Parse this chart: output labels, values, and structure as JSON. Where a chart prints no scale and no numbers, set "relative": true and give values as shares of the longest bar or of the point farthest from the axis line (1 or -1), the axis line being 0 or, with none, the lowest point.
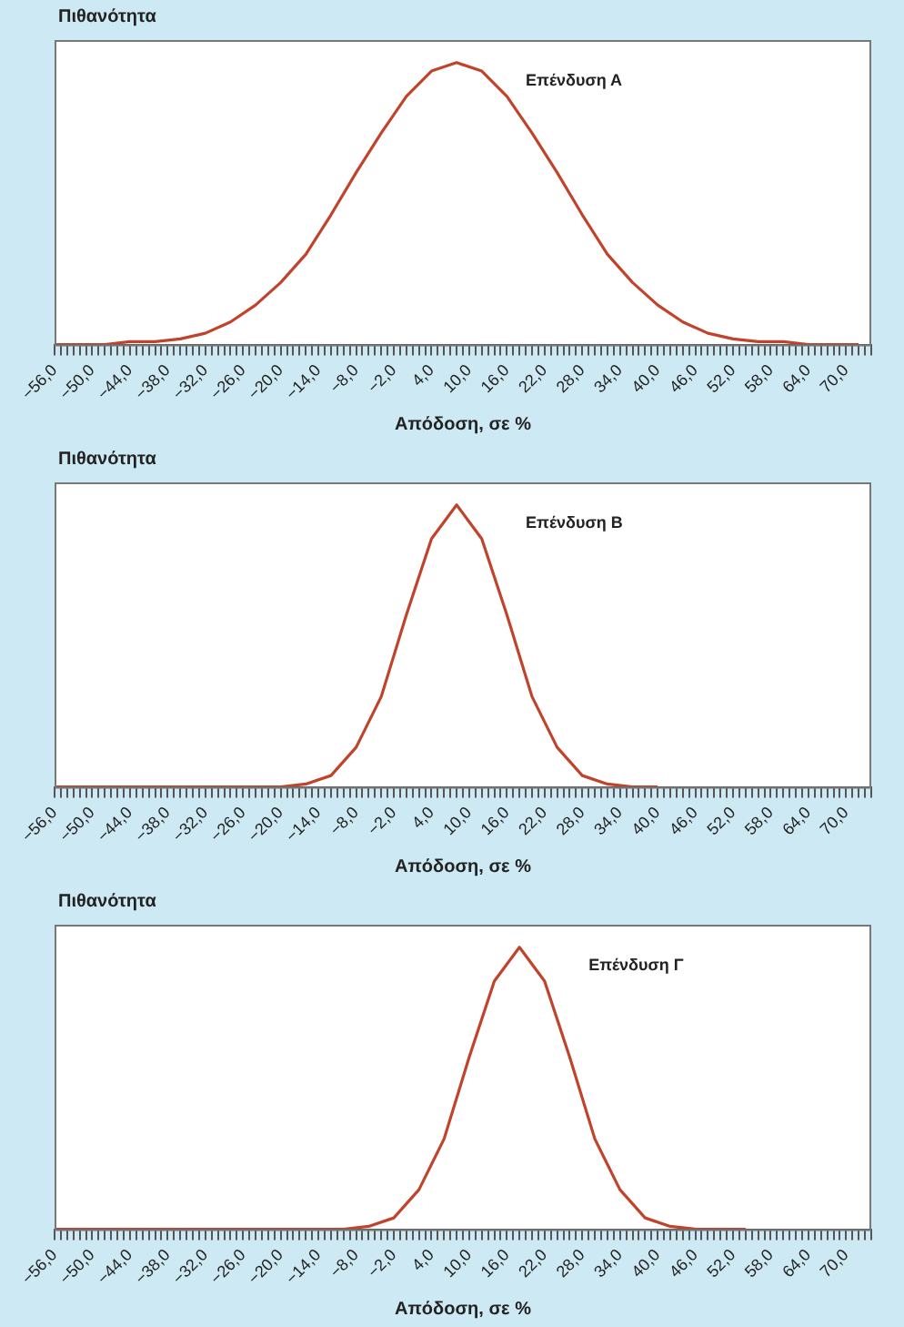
{
  "chart_data": [
    {
      "type": "line",
      "ylabel": "Πιθανότητα",
      "xlabel": "Απόδοση, σε %",
      "relative": true,
      "grid": false,
      "legend": false,
      "marker": "none",
      "line_style": "solid",
      "tick_labels": "x",
      "xlim": [
        -56,
        74
      ],
      "x": [
        -56,
        -52,
        -48,
        -44,
        -40,
        -36,
        -32,
        -28,
        -24,
        -20,
        -16,
        -12,
        -8,
        -4,
        0,
        4,
        8,
        12,
        16,
        20,
        24,
        28,
        32,
        36,
        40,
        44,
        48,
        52,
        56,
        60,
        64,
        68,
        72
      ],
      "series": [
        {
          "name": "Επένδυση Α",
          "color": "#c0442c",
          "values": [
            0,
            0,
            0,
            0.01,
            0.01,
            0.02,
            0.04,
            0.08,
            0.14,
            0.22,
            0.32,
            0.46,
            0.61,
            0.75,
            0.88,
            0.97,
            1,
            0.97,
            0.88,
            0.75,
            0.61,
            0.46,
            0.32,
            0.22,
            0.14,
            0.08,
            0.04,
            0.02,
            0.01,
            0.01,
            0,
            0,
            0
          ]
        }
      ],
      "xticks": [
        {
          "value": -56,
          "label": "−56,0"
        },
        {
          "value": -55,
          "label": null
        },
        {
          "value": -54,
          "label": null
        },
        {
          "value": -53,
          "label": null
        },
        {
          "value": -52,
          "label": null
        },
        {
          "value": -51,
          "label": null
        },
        {
          "value": -50,
          "label": "−50,0"
        },
        {
          "value": -49,
          "label": null
        },
        {
          "value": -48,
          "label": null
        },
        {
          "value": -47,
          "label": null
        },
        {
          "value": -46,
          "label": null
        },
        {
          "value": -45,
          "label": null
        },
        {
          "value": -44,
          "label": "−44,0"
        },
        {
          "value": -43,
          "label": null
        },
        {
          "value": -42,
          "label": null
        },
        {
          "value": -41,
          "label": null
        },
        {
          "value": -40,
          "label": null
        },
        {
          "value": -39,
          "label": null
        },
        {
          "value": -38,
          "label": "−38,0"
        },
        {
          "value": -37,
          "label": null
        },
        {
          "value": -36,
          "label": null
        },
        {
          "value": -35,
          "label": null
        },
        {
          "value": -34,
          "label": null
        },
        {
          "value": -33,
          "label": null
        },
        {
          "value": -32,
          "label": "−32,0"
        },
        {
          "value": -31,
          "label": null
        },
        {
          "value": -30,
          "label": null
        },
        {
          "value": -29,
          "label": null
        },
        {
          "value": -28,
          "label": null
        },
        {
          "value": -27,
          "label": null
        },
        {
          "value": -26,
          "label": "−26,0"
        },
        {
          "value": -25,
          "label": null
        },
        {
          "value": -24,
          "label": null
        },
        {
          "value": -23,
          "label": null
        },
        {
          "value": -22,
          "label": null
        },
        {
          "value": -21,
          "label": null
        },
        {
          "value": -20,
          "label": "−20,0"
        },
        {
          "value": -19,
          "label": null
        },
        {
          "value": -18,
          "label": null
        },
        {
          "value": -17,
          "label": null
        },
        {
          "value": -16,
          "label": null
        },
        {
          "value": -15,
          "label": null
        },
        {
          "value": -14,
          "label": "−14,0"
        },
        {
          "value": -13,
          "label": null
        },
        {
          "value": -12,
          "label": null
        },
        {
          "value": -11,
          "label": null
        },
        {
          "value": -10,
          "label": null
        },
        {
          "value": -9,
          "label": null
        },
        {
          "value": -8,
          "label": "−8,0"
        },
        {
          "value": -7,
          "label": null
        },
        {
          "value": -6,
          "label": null
        },
        {
          "value": -5,
          "label": null
        },
        {
          "value": -4,
          "label": null
        },
        {
          "value": -3,
          "label": null
        },
        {
          "value": -2,
          "label": "−2,0"
        },
        {
          "value": -1,
          "label": null
        },
        {
          "value": 0,
          "label": null
        },
        {
          "value": 1,
          "label": null
        },
        {
          "value": 2,
          "label": null
        },
        {
          "value": 3,
          "label": null
        },
        {
          "value": 4,
          "label": "4,0"
        },
        {
          "value": 5,
          "label": null
        },
        {
          "value": 6,
          "label": null
        },
        {
          "value": 7,
          "label": null
        },
        {
          "value": 8,
          "label": null
        },
        {
          "value": 9,
          "label": null
        },
        {
          "value": 10,
          "label": "10,0"
        },
        {
          "value": 11,
          "label": null
        },
        {
          "value": 12,
          "label": null
        },
        {
          "value": 13,
          "label": null
        },
        {
          "value": 14,
          "label": null
        },
        {
          "value": 15,
          "label": null
        },
        {
          "value": 16,
          "label": "16,0"
        },
        {
          "value": 17,
          "label": null
        },
        {
          "value": 18,
          "label": null
        },
        {
          "value": 19,
          "label": null
        },
        {
          "value": 20,
          "label": null
        },
        {
          "value": 21,
          "label": null
        },
        {
          "value": 22,
          "label": "22,0"
        },
        {
          "value": 23,
          "label": null
        },
        {
          "value": 24,
          "label": null
        },
        {
          "value": 25,
          "label": null
        },
        {
          "value": 26,
          "label": null
        },
        {
          "value": 27,
          "label": null
        },
        {
          "value": 28,
          "label": "28,0"
        },
        {
          "value": 29,
          "label": null
        },
        {
          "value": 30,
          "label": null
        },
        {
          "value": 31,
          "label": null
        },
        {
          "value": 32,
          "label": null
        },
        {
          "value": 33,
          "label": null
        },
        {
          "value": 34,
          "label": "34,0"
        },
        {
          "value": 35,
          "label": null
        },
        {
          "value": 36,
          "label": null
        },
        {
          "value": 37,
          "label": null
        },
        {
          "value": 38,
          "label": null
        },
        {
          "value": 39,
          "label": null
        },
        {
          "value": 40,
          "label": "40,0"
        },
        {
          "value": 41,
          "label": null
        },
        {
          "value": 42,
          "label": null
        },
        {
          "value": 43,
          "label": null
        },
        {
          "value": 44,
          "label": null
        },
        {
          "value": 45,
          "label": null
        },
        {
          "value": 46,
          "label": "46,0"
        },
        {
          "value": 47,
          "label": null
        },
        {
          "value": 48,
          "label": null
        },
        {
          "value": 49,
          "label": null
        },
        {
          "value": 50,
          "label": null
        },
        {
          "value": 51,
          "label": null
        },
        {
          "value": 52,
          "label": "52,0"
        },
        {
          "value": 53,
          "label": null
        },
        {
          "value": 54,
          "label": null
        },
        {
          "value": 55,
          "label": null
        },
        {
          "value": 56,
          "label": null
        },
        {
          "value": 57,
          "label": null
        },
        {
          "value": 58,
          "label": "58,0"
        },
        {
          "value": 59,
          "label": null
        },
        {
          "value": 60,
          "label": null
        },
        {
          "value": 61,
          "label": null
        },
        {
          "value": 62,
          "label": null
        },
        {
          "value": 63,
          "label": null
        },
        {
          "value": 64,
          "label": "64,0"
        },
        {
          "value": 65,
          "label": null
        },
        {
          "value": 66,
          "label": null
        },
        {
          "value": 67,
          "label": null
        },
        {
          "value": 68,
          "label": null
        },
        {
          "value": 69,
          "label": null
        },
        {
          "value": 70,
          "label": "70,0"
        },
        {
          "value": 71,
          "label": null
        },
        {
          "value": 72,
          "label": null
        },
        {
          "value": 73,
          "label": null
        },
        {
          "value": 74,
          "label": null
        }
      ]
    },
    {
      "type": "line",
      "ylabel": "Πιθανότητα",
      "xlabel": "Απόδοση, σε %",
      "relative": true,
      "grid": false,
      "legend": false,
      "marker": "none",
      "line_style": "solid",
      "tick_labels": "x",
      "xlim": [
        -56,
        74
      ],
      "x": [
        -56,
        -52,
        -48,
        -44,
        -40,
        -36,
        -32,
        -28,
        -24,
        -20,
        -16,
        -12,
        -8,
        -4,
        0,
        4,
        8,
        12,
        16,
        20,
        24,
        28,
        32,
        36,
        40
      ],
      "series": [
        {
          "name": "Επένδυση Β",
          "color": "#c0442c",
          "values": [
            0,
            0,
            0,
            0,
            0,
            0,
            0,
            0,
            0,
            0,
            0.01,
            0.04,
            0.14,
            0.32,
            0.61,
            0.88,
            1,
            0.88,
            0.61,
            0.32,
            0.14,
            0.04,
            0.01,
            0,
            0
          ]
        }
      ],
      "xticks": [
        {
          "value": -56,
          "label": "−56,0"
        },
        {
          "value": -55,
          "label": null
        },
        {
          "value": -54,
          "label": null
        },
        {
          "value": -53,
          "label": null
        },
        {
          "value": -52,
          "label": null
        },
        {
          "value": -51,
          "label": null
        },
        {
          "value": -50,
          "label": "−50,0"
        },
        {
          "value": -49,
          "label": null
        },
        {
          "value": -48,
          "label": null
        },
        {
          "value": -47,
          "label": null
        },
        {
          "value": -46,
          "label": null
        },
        {
          "value": -45,
          "label": null
        },
        {
          "value": -44,
          "label": "−44,0"
        },
        {
          "value": -43,
          "label": null
        },
        {
          "value": -42,
          "label": null
        },
        {
          "value": -41,
          "label": null
        },
        {
          "value": -40,
          "label": null
        },
        {
          "value": -39,
          "label": null
        },
        {
          "value": -38,
          "label": "−38,0"
        },
        {
          "value": -37,
          "label": null
        },
        {
          "value": -36,
          "label": null
        },
        {
          "value": -35,
          "label": null
        },
        {
          "value": -34,
          "label": null
        },
        {
          "value": -33,
          "label": null
        },
        {
          "value": -32,
          "label": "−32,0"
        },
        {
          "value": -31,
          "label": null
        },
        {
          "value": -30,
          "label": null
        },
        {
          "value": -29,
          "label": null
        },
        {
          "value": -28,
          "label": null
        },
        {
          "value": -27,
          "label": null
        },
        {
          "value": -26,
          "label": "−26,0"
        },
        {
          "value": -25,
          "label": null
        },
        {
          "value": -24,
          "label": null
        },
        {
          "value": -23,
          "label": null
        },
        {
          "value": -22,
          "label": null
        },
        {
          "value": -21,
          "label": null
        },
        {
          "value": -20,
          "label": "−20,0"
        },
        {
          "value": -19,
          "label": null
        },
        {
          "value": -18,
          "label": null
        },
        {
          "value": -17,
          "label": null
        },
        {
          "value": -16,
          "label": null
        },
        {
          "value": -15,
          "label": null
        },
        {
          "value": -14,
          "label": "−14,0"
        },
        {
          "value": -13,
          "label": null
        },
        {
          "value": -12,
          "label": null
        },
        {
          "value": -11,
          "label": null
        },
        {
          "value": -10,
          "label": null
        },
        {
          "value": -9,
          "label": null
        },
        {
          "value": -8,
          "label": "−8,0"
        },
        {
          "value": -7,
          "label": null
        },
        {
          "value": -6,
          "label": null
        },
        {
          "value": -5,
          "label": null
        },
        {
          "value": -4,
          "label": null
        },
        {
          "value": -3,
          "label": null
        },
        {
          "value": -2,
          "label": "−2,0"
        },
        {
          "value": -1,
          "label": null
        },
        {
          "value": 0,
          "label": null
        },
        {
          "value": 1,
          "label": null
        },
        {
          "value": 2,
          "label": null
        },
        {
          "value": 3,
          "label": null
        },
        {
          "value": 4,
          "label": "4,0"
        },
        {
          "value": 5,
          "label": null
        },
        {
          "value": 6,
          "label": null
        },
        {
          "value": 7,
          "label": null
        },
        {
          "value": 8,
          "label": null
        },
        {
          "value": 9,
          "label": null
        },
        {
          "value": 10,
          "label": "10,0"
        },
        {
          "value": 11,
          "label": null
        },
        {
          "value": 12,
          "label": null
        },
        {
          "value": 13,
          "label": null
        },
        {
          "value": 14,
          "label": null
        },
        {
          "value": 15,
          "label": null
        },
        {
          "value": 16,
          "label": "16,0"
        },
        {
          "value": 17,
          "label": null
        },
        {
          "value": 18,
          "label": null
        },
        {
          "value": 19,
          "label": null
        },
        {
          "value": 20,
          "label": null
        },
        {
          "value": 21,
          "label": null
        },
        {
          "value": 22,
          "label": "22,0"
        },
        {
          "value": 23,
          "label": null
        },
        {
          "value": 24,
          "label": null
        },
        {
          "value": 25,
          "label": null
        },
        {
          "value": 26,
          "label": null
        },
        {
          "value": 27,
          "label": null
        },
        {
          "value": 28,
          "label": "28,0"
        },
        {
          "value": 29,
          "label": null
        },
        {
          "value": 30,
          "label": null
        },
        {
          "value": 31,
          "label": null
        },
        {
          "value": 32,
          "label": null
        },
        {
          "value": 33,
          "label": null
        },
        {
          "value": 34,
          "label": "34,0"
        },
        {
          "value": 35,
          "label": null
        },
        {
          "value": 36,
          "label": null
        },
        {
          "value": 37,
          "label": null
        },
        {
          "value": 38,
          "label": null
        },
        {
          "value": 39,
          "label": null
        },
        {
          "value": 40,
          "label": "40,0"
        },
        {
          "value": 41,
          "label": null
        },
        {
          "value": 42,
          "label": null
        },
        {
          "value": 43,
          "label": null
        },
        {
          "value": 44,
          "label": null
        },
        {
          "value": 45,
          "label": null
        },
        {
          "value": 46,
          "label": "46,0"
        },
        {
          "value": 47,
          "label": null
        },
        {
          "value": 48,
          "label": null
        },
        {
          "value": 49,
          "label": null
        },
        {
          "value": 50,
          "label": null
        },
        {
          "value": 51,
          "label": null
        },
        {
          "value": 52,
          "label": "52,0"
        },
        {
          "value": 53,
          "label": null
        },
        {
          "value": 54,
          "label": null
        },
        {
          "value": 55,
          "label": null
        },
        {
          "value": 56,
          "label": null
        },
        {
          "value": 57,
          "label": null
        },
        {
          "value": 58,
          "label": "58,0"
        },
        {
          "value": 59,
          "label": null
        },
        {
          "value": 60,
          "label": null
        },
        {
          "value": 61,
          "label": null
        },
        {
          "value": 62,
          "label": null
        },
        {
          "value": 63,
          "label": null
        },
        {
          "value": 64,
          "label": "64,0"
        },
        {
          "value": 65,
          "label": null
        },
        {
          "value": 66,
          "label": null
        },
        {
          "value": 67,
          "label": null
        },
        {
          "value": 68,
          "label": null
        },
        {
          "value": 69,
          "label": null
        },
        {
          "value": 70,
          "label": "70,0"
        },
        {
          "value": 71,
          "label": null
        },
        {
          "value": 72,
          "label": null
        },
        {
          "value": 73,
          "label": null
        },
        {
          "value": 74,
          "label": null
        }
      ]
    },
    {
      "type": "line",
      "ylabel": "Πιθανότητα",
      "xlabel": "Απόδοση, σε %",
      "relative": true,
      "grid": false,
      "legend": false,
      "marker": "none",
      "line_style": "solid",
      "tick_labels": "x",
      "xlim": [
        -56,
        74
      ],
      "x": [
        -56,
        -52,
        -48,
        -44,
        -40,
        -36,
        -32,
        -28,
        -24,
        -20,
        -16,
        -14,
        -10,
        -6,
        -2,
        2,
        6,
        10,
        14,
        18,
        22,
        26,
        30,
        34,
        38,
        42,
        46,
        50,
        54
      ],
      "series": [
        {
          "name": "Επένδυση Γ",
          "color": "#c0442c",
          "values": [
            0,
            0,
            0,
            0,
            0,
            0,
            0,
            0,
            0,
            0,
            0,
            0,
            0,
            0.01,
            0.04,
            0.14,
            0.32,
            0.61,
            0.88,
            1,
            0.88,
            0.61,
            0.32,
            0.14,
            0.04,
            0.01,
            0,
            0,
            0
          ]
        }
      ],
      "xticks": [
        {
          "value": -56,
          "label": "−56,0"
        },
        {
          "value": -55,
          "label": null
        },
        {
          "value": -54,
          "label": null
        },
        {
          "value": -53,
          "label": null
        },
        {
          "value": -52,
          "label": null
        },
        {
          "value": -51,
          "label": null
        },
        {
          "value": -50,
          "label": "−50,0"
        },
        {
          "value": -49,
          "label": null
        },
        {
          "value": -48,
          "label": null
        },
        {
          "value": -47,
          "label": null
        },
        {
          "value": -46,
          "label": null
        },
        {
          "value": -45,
          "label": null
        },
        {
          "value": -44,
          "label": "−44,0"
        },
        {
          "value": -43,
          "label": null
        },
        {
          "value": -42,
          "label": null
        },
        {
          "value": -41,
          "label": null
        },
        {
          "value": -40,
          "label": null
        },
        {
          "value": -39,
          "label": null
        },
        {
          "value": -38,
          "label": "−38,0"
        },
        {
          "value": -37,
          "label": null
        },
        {
          "value": -36,
          "label": null
        },
        {
          "value": -35,
          "label": null
        },
        {
          "value": -34,
          "label": null
        },
        {
          "value": -33,
          "label": null
        },
        {
          "value": -32,
          "label": "−32,0"
        },
        {
          "value": -31,
          "label": null
        },
        {
          "value": -30,
          "label": null
        },
        {
          "value": -29,
          "label": null
        },
        {
          "value": -28,
          "label": null
        },
        {
          "value": -27,
          "label": null
        },
        {
          "value": -26,
          "label": "−26,0"
        },
        {
          "value": -25,
          "label": null
        },
        {
          "value": -24,
          "label": null
        },
        {
          "value": -23,
          "label": null
        },
        {
          "value": -22,
          "label": null
        },
        {
          "value": -21,
          "label": null
        },
        {
          "value": -20,
          "label": "−20,0"
        },
        {
          "value": -19,
          "label": null
        },
        {
          "value": -18,
          "label": null
        },
        {
          "value": -17,
          "label": null
        },
        {
          "value": -16,
          "label": null
        },
        {
          "value": -15,
          "label": null
        },
        {
          "value": -14,
          "label": "−14,0"
        },
        {
          "value": -13,
          "label": null
        },
        {
          "value": -12,
          "label": null
        },
        {
          "value": -11,
          "label": null
        },
        {
          "value": -10,
          "label": null
        },
        {
          "value": -9,
          "label": null
        },
        {
          "value": -8,
          "label": "−8,0"
        },
        {
          "value": -7,
          "label": null
        },
        {
          "value": -6,
          "label": null
        },
        {
          "value": -5,
          "label": null
        },
        {
          "value": -4,
          "label": null
        },
        {
          "value": -3,
          "label": null
        },
        {
          "value": -2,
          "label": "−2,0"
        },
        {
          "value": -1,
          "label": null
        },
        {
          "value": 0,
          "label": null
        },
        {
          "value": 1,
          "label": null
        },
        {
          "value": 2,
          "label": null
        },
        {
          "value": 3,
          "label": null
        },
        {
          "value": 4,
          "label": "4,0"
        },
        {
          "value": 5,
          "label": null
        },
        {
          "value": 6,
          "label": null
        },
        {
          "value": 7,
          "label": null
        },
        {
          "value": 8,
          "label": null
        },
        {
          "value": 9,
          "label": null
        },
        {
          "value": 10,
          "label": "10,0"
        },
        {
          "value": 11,
          "label": null
        },
        {
          "value": 12,
          "label": null
        },
        {
          "value": 13,
          "label": null
        },
        {
          "value": 14,
          "label": null
        },
        {
          "value": 15,
          "label": null
        },
        {
          "value": 16,
          "label": "16,0"
        },
        {
          "value": 17,
          "label": null
        },
        {
          "value": 18,
          "label": null
        },
        {
          "value": 19,
          "label": null
        },
        {
          "value": 20,
          "label": null
        },
        {
          "value": 21,
          "label": null
        },
        {
          "value": 22,
          "label": "22,0"
        },
        {
          "value": 23,
          "label": null
        },
        {
          "value": 24,
          "label": null
        },
        {
          "value": 25,
          "label": null
        },
        {
          "value": 26,
          "label": null
        },
        {
          "value": 27,
          "label": null
        },
        {
          "value": 28,
          "label": "28,0"
        },
        {
          "value": 29,
          "label": null
        },
        {
          "value": 30,
          "label": null
        },
        {
          "value": 31,
          "label": null
        },
        {
          "value": 32,
          "label": null
        },
        {
          "value": 33,
          "label": null
        },
        {
          "value": 34,
          "label": "34,0"
        },
        {
          "value": 35,
          "label": null
        },
        {
          "value": 36,
          "label": null
        },
        {
          "value": 37,
          "label": null
        },
        {
          "value": 38,
          "label": null
        },
        {
          "value": 39,
          "label": null
        },
        {
          "value": 40,
          "label": "40,0"
        },
        {
          "value": 41,
          "label": null
        },
        {
          "value": 42,
          "label": null
        },
        {
          "value": 43,
          "label": null
        },
        {
          "value": 44,
          "label": null
        },
        {
          "value": 45,
          "label": null
        },
        {
          "value": 46,
          "label": "46,0"
        },
        {
          "value": 47,
          "label": null
        },
        {
          "value": 48,
          "label": null
        },
        {
          "value": 49,
          "label": null
        },
        {
          "value": 50,
          "label": null
        },
        {
          "value": 51,
          "label": null
        },
        {
          "value": 52,
          "label": "52,0"
        },
        {
          "value": 53,
          "label": null
        },
        {
          "value": 54,
          "label": null
        },
        {
          "value": 55,
          "label": null
        },
        {
          "value": 56,
          "label": null
        },
        {
          "value": 57,
          "label": null
        },
        {
          "value": 58,
          "label": "58,0"
        },
        {
          "value": 59,
          "label": null
        },
        {
          "value": 60,
          "label": null
        },
        {
          "value": 61,
          "label": null
        },
        {
          "value": 62,
          "label": null
        },
        {
          "value": 63,
          "label": null
        },
        {
          "value": 64,
          "label": "64,0"
        },
        {
          "value": 65,
          "label": null
        },
        {
          "value": 66,
          "label": null
        },
        {
          "value": 67,
          "label": null
        },
        {
          "value": 68,
          "label": null
        },
        {
          "value": 69,
          "label": null
        },
        {
          "value": 70,
          "label": "70,0"
        },
        {
          "value": 71,
          "label": null
        },
        {
          "value": 72,
          "label": null
        },
        {
          "value": 73,
          "label": null
        },
        {
          "value": 74,
          "label": null
        }
      ]
    }
  ]
}
